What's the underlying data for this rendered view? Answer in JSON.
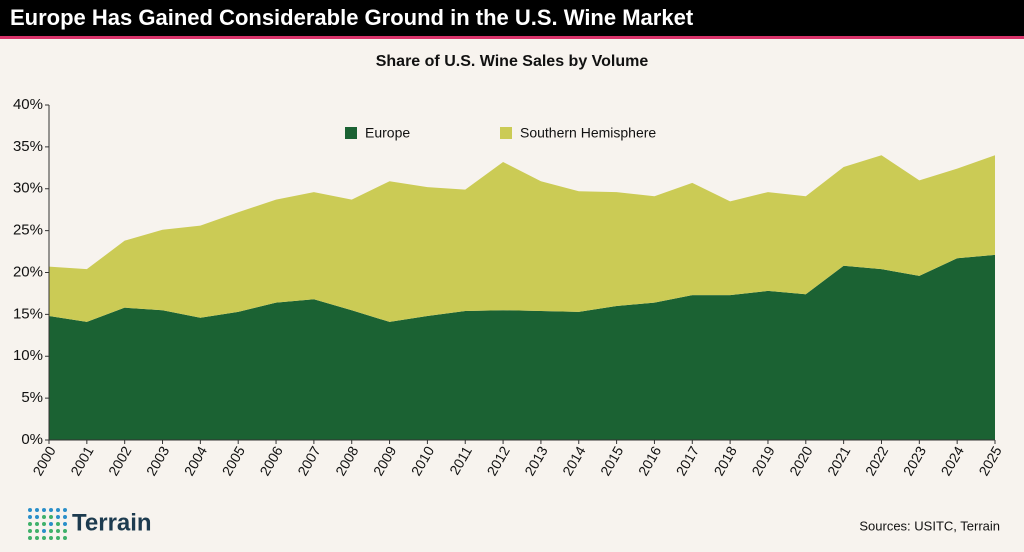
{
  "header": {
    "title": "Europe Has Gained Considerable Ground in the U.S. Wine Market"
  },
  "footer": {
    "logo": "Terrain",
    "source": "Sources: USITC, Terrain"
  },
  "chart_data": {
    "type": "stacked-area",
    "title": "Share of U.S. Wine Sales by Volume",
    "categories": [
      "2000",
      "2001",
      "2002",
      "2003",
      "2004",
      "2005",
      "2006",
      "2007",
      "2008",
      "2009",
      "2010",
      "2011",
      "2012",
      "2013",
      "2014",
      "2015",
      "2016",
      "2017",
      "2018",
      "2019",
      "2020",
      "2021",
      "2022",
      "2023",
      "2024",
      "2025"
    ],
    "series": [
      {
        "name": "Europe",
        "color": "#1b6233",
        "values": [
          14.8,
          14.1,
          15.8,
          15.5,
          14.6,
          15.3,
          16.4,
          16.8,
          15.5,
          14.1,
          14.8,
          15.4,
          15.5,
          15.4,
          15.3,
          16.0,
          16.4,
          17.3,
          17.3,
          17.8,
          17.4,
          20.8,
          20.4,
          19.6,
          21.7,
          22.1
        ]
      },
      {
        "name": "Southern Hemisphere",
        "color": "#cbcb55",
        "values": [
          5.9,
          6.3,
          8.0,
          9.6,
          11.0,
          11.9,
          12.3,
          12.8,
          13.2,
          16.8,
          15.4,
          14.5,
          17.7,
          15.5,
          14.4,
          13.6,
          12.7,
          13.4,
          11.2,
          11.8,
          11.7,
          11.8,
          13.6,
          11.4,
          10.7,
          11.9
        ]
      }
    ],
    "ylim": [
      0,
      40
    ],
    "yticks": [
      {
        "value": 0,
        "label": "0%"
      },
      {
        "value": 5,
        "label": "5%"
      },
      {
        "value": 10,
        "label": "10%"
      },
      {
        "value": 15,
        "label": "15%"
      },
      {
        "value": 20,
        "label": "20%"
      },
      {
        "value": 25,
        "label": "25%"
      },
      {
        "value": 30,
        "label": "30%"
      },
      {
        "value": 35,
        "label": "35%"
      },
      {
        "value": 40,
        "label": "40%"
      }
    ],
    "legend": "top"
  }
}
